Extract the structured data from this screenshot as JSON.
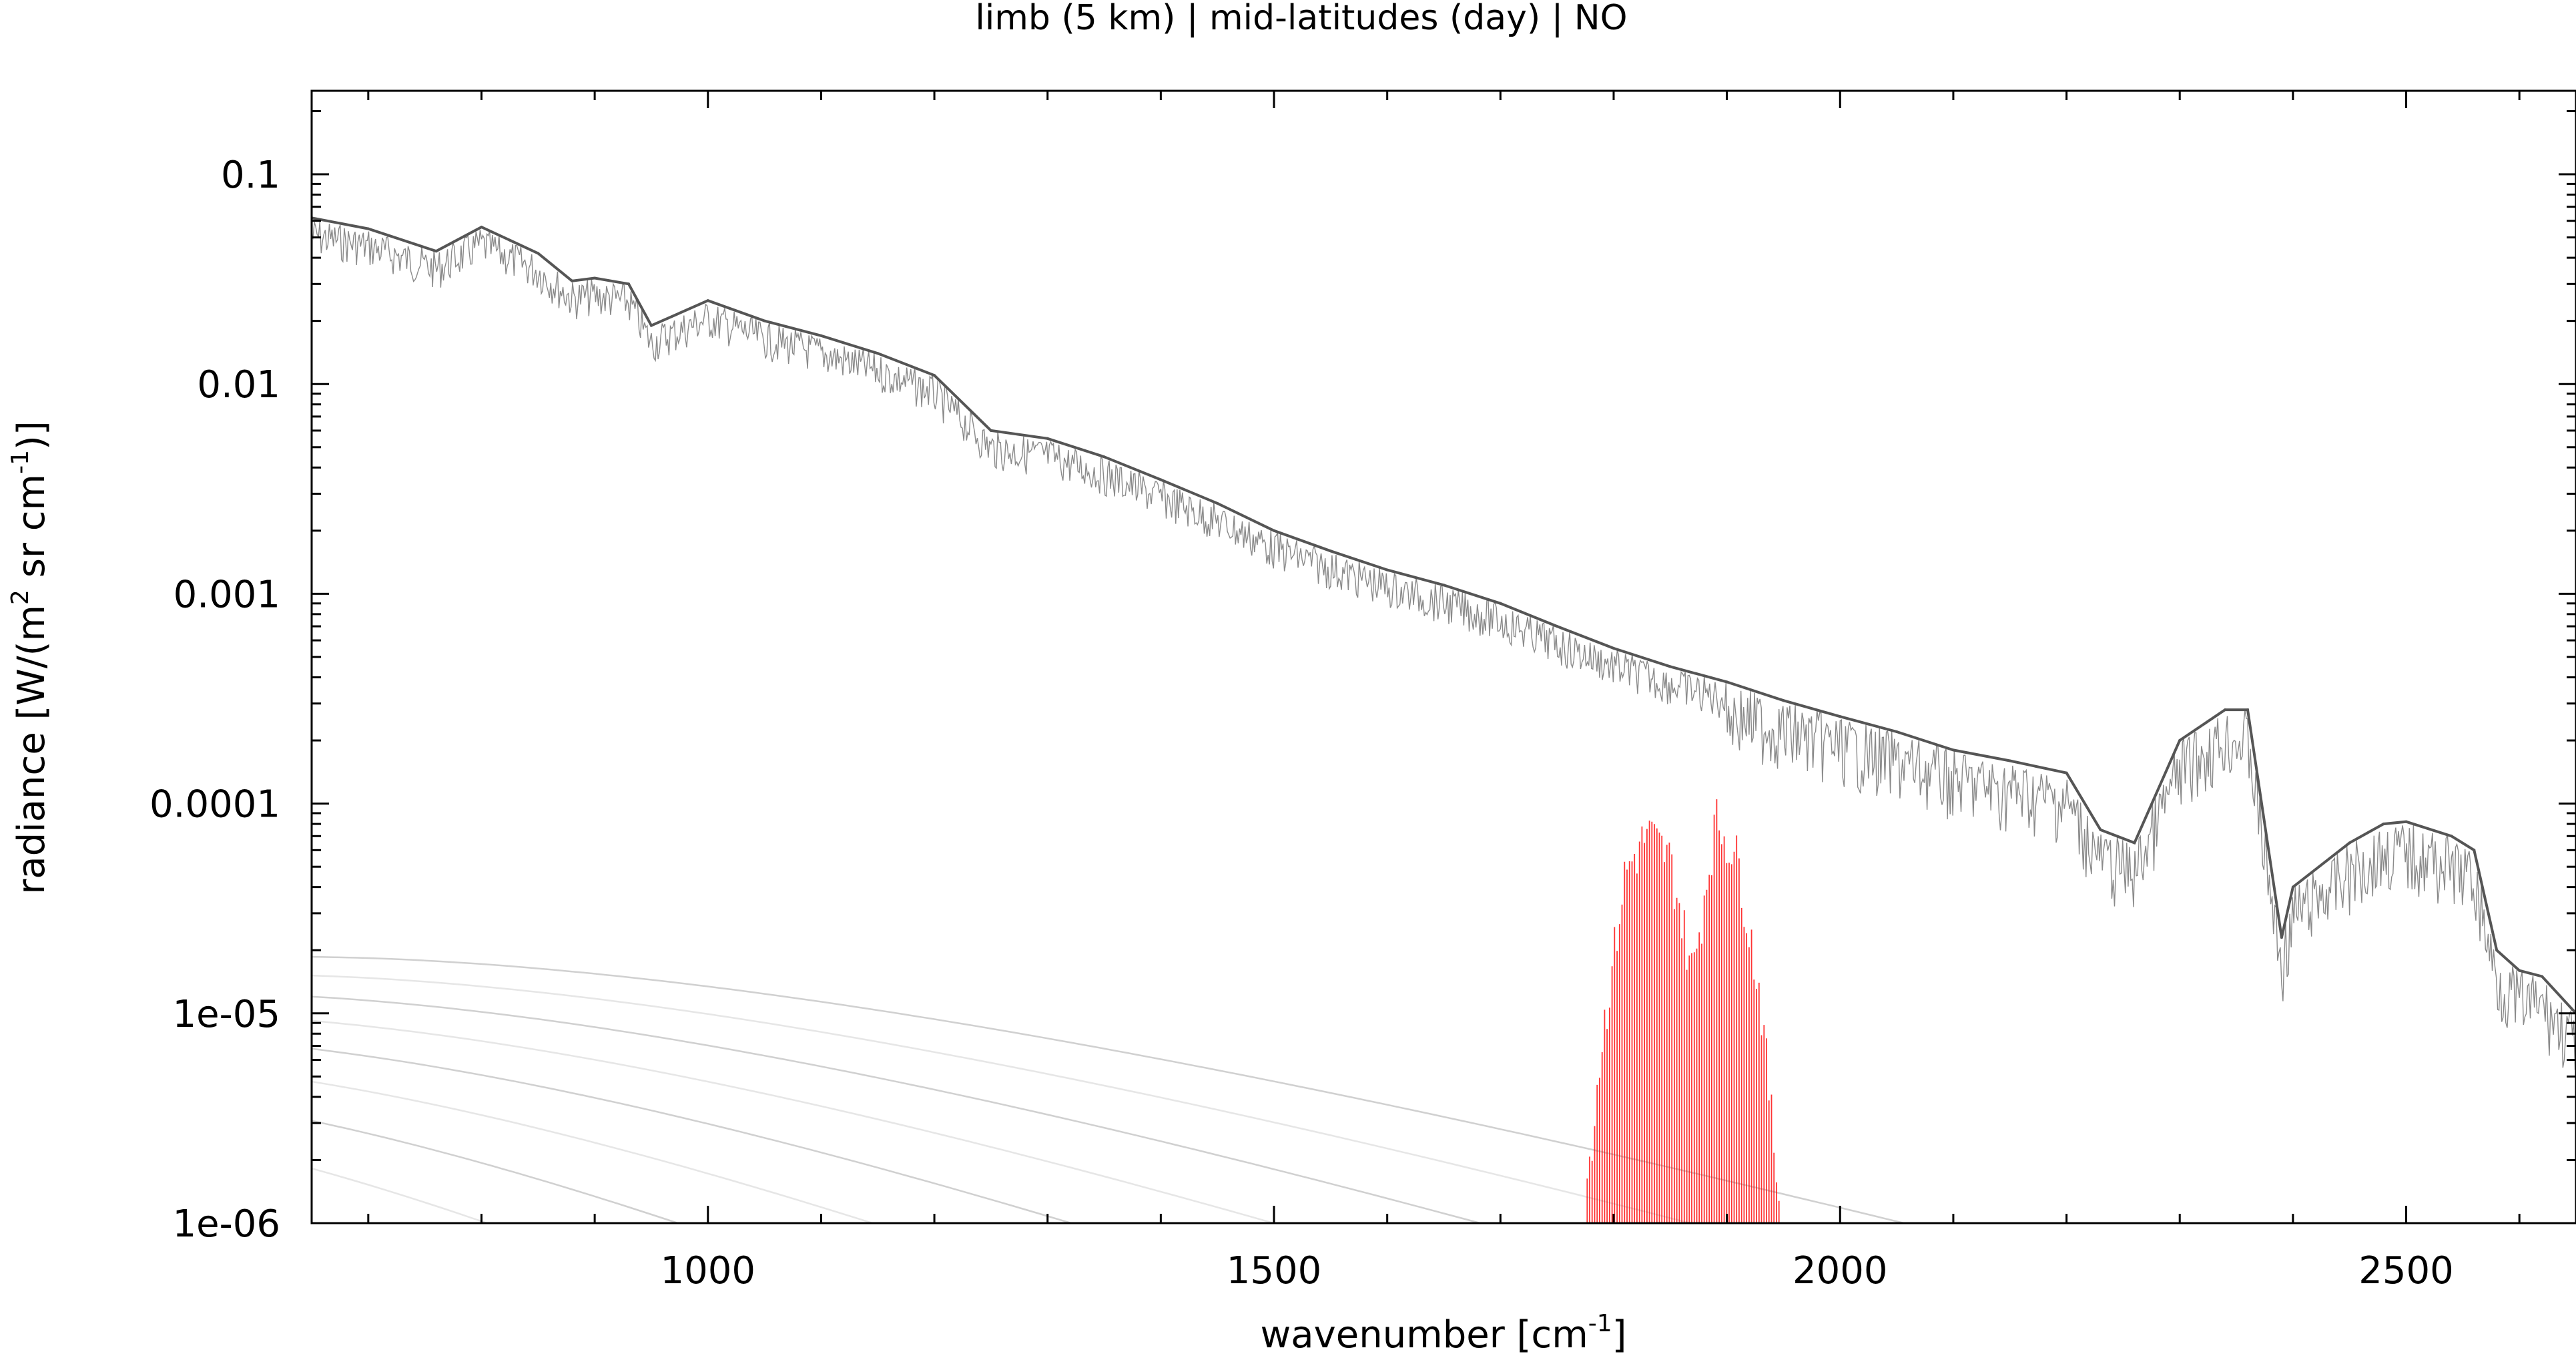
{
  "chart_data": {
    "type": "line",
    "title": "limb (5 km) | mid-latitudes (day) | NO",
    "xlabel": {
      "main": "wavenumber [cm",
      "sup": "-1",
      "end": "]"
    },
    "ylabel": {
      "a": "radiance [W/(m",
      "sup1": "2",
      "b": " sr cm",
      "sup2": "-1",
      "c": ")]"
    },
    "xlim": [
      650,
      2650
    ],
    "ylim": [
      1e-06,
      0.25
    ],
    "yscale": "log",
    "grid": false,
    "legend": "none",
    "xticks": [
      {
        "v": 1000,
        "label": "1000"
      },
      {
        "v": 1500,
        "label": "1500"
      },
      {
        "v": 2000,
        "label": "2000"
      },
      {
        "v": 2500,
        "label": "2500"
      }
    ],
    "yticks": [
      {
        "v": 0.1,
        "label": "0.1"
      },
      {
        "v": 0.01,
        "label": "0.01"
      },
      {
        "v": 0.001,
        "label": "0.001"
      },
      {
        "v": 0.0001,
        "label": "0.0001"
      },
      {
        "v": 1e-05,
        "label": "1e-05"
      },
      {
        "v": 1e-06,
        "label": "1e-06"
      }
    ],
    "planck_temperatures_K": [
      320,
      300,
      280,
      260,
      240,
      220,
      200,
      180,
      160,
      140,
      120,
      100
    ],
    "series": [
      {
        "role": "total spectrum",
        "color": "#555555",
        "x": [
          650,
          700,
          760,
          800,
          850,
          880,
          900,
          930,
          950,
          1000,
          1050,
          1100,
          1150,
          1200,
          1250,
          1300,
          1350,
          1400,
          1450,
          1500,
          1550,
          1600,
          1650,
          1700,
          1750,
          1800,
          1850,
          1900,
          1950,
          2000,
          2050,
          2100,
          2150,
          2200,
          2230,
          2260,
          2300,
          2340,
          2360,
          2390,
          2400,
          2450,
          2480,
          2500,
          2540,
          2560,
          2580,
          2600,
          2620,
          2650
        ],
        "y": [
          0.062,
          0.055,
          0.043,
          0.056,
          0.042,
          0.031,
          0.032,
          0.03,
          0.019,
          0.025,
          0.02,
          0.017,
          0.014,
          0.011,
          0.006,
          0.0055,
          0.0045,
          0.0035,
          0.0027,
          0.002,
          0.0016,
          0.0013,
          0.0011,
          0.0009,
          0.0007,
          0.00055,
          0.00045,
          0.00038,
          0.00031,
          0.00026,
          0.00022,
          0.00018,
          0.00016,
          0.00014,
          7.5e-05,
          6.5e-05,
          0.0002,
          0.00028,
          0.00028,
          2.3e-05,
          4e-05,
          6.5e-05,
          8e-05,
          8.2e-05,
          7e-05,
          6e-05,
          2e-05,
          1.6e-05,
          1.5e-05,
          1e-05
        ]
      },
      {
        "role": "NO contribution",
        "color": "#ff0000",
        "x": [
          1770,
          1790,
          1810,
          1830,
          1850,
          1870,
          1890,
          1910,
          1930,
          1950
        ],
        "y": [
          1e-06,
          1e-05,
          6e-05,
          9.5e-05,
          7e-05,
          2e-05,
          0.00011,
          7e-05,
          1.5e-05,
          1e-06
        ]
      }
    ]
  }
}
